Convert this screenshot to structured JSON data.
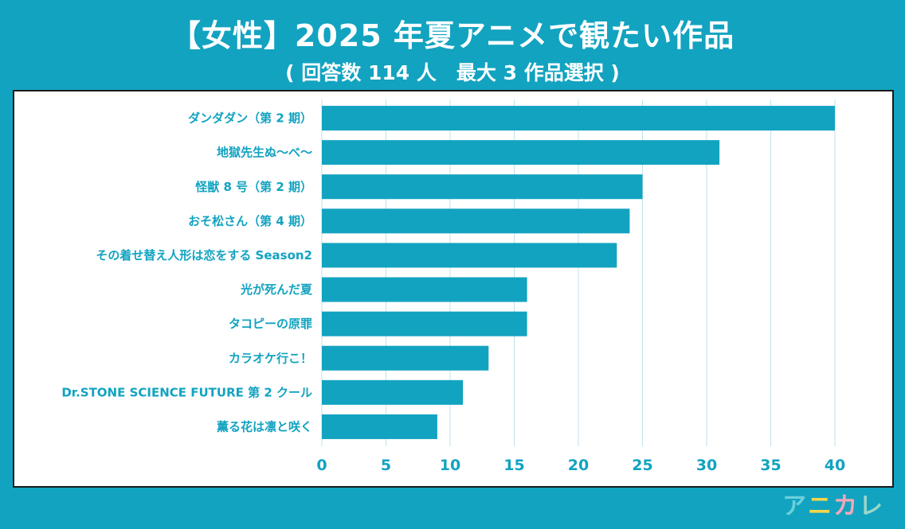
{
  "header": {
    "title": "【女性】2025 年夏アニメで観たい作品",
    "subtitle": "( 回答数 114 人　最大 3 作品選択 )"
  },
  "chart_data": {
    "type": "bar",
    "orientation": "horizontal",
    "title": "【女性】2025 年夏アニメで観たい作品",
    "subtitle": "( 回答数 114 人　最大 3 作品選択 )",
    "categories": [
      "ダンダダン（第 2 期）",
      "地獄先生ぬ〜べ〜",
      "怪獣 8 号（第 2 期）",
      "おそ松さん（第 4 期）",
      "その着せ替え人形は恋をする Season2",
      "光が死んだ夏",
      "タコピーの原罪",
      "カラオケ行こ！",
      "Dr.STONE SCIENCE FUTURE 第 2 クール",
      "薫る花は凛と咲く"
    ],
    "values": [
      40,
      31,
      25,
      24,
      23,
      16,
      16,
      13,
      11,
      9
    ],
    "xlim": [
      0,
      40
    ],
    "xticks": [
      "0",
      "5",
      "10",
      "15",
      "20",
      "25",
      "30",
      "35",
      "40"
    ],
    "grid": true,
    "colors": {
      "bar": "#12a3c0",
      "label": "#12a3c0",
      "grid": "#bfe3ea"
    }
  },
  "logo": {
    "chars": [
      "ア",
      "ニ",
      "カ",
      "レ"
    ],
    "colors": [
      "#6ad0dc",
      "#f7d64a",
      "#f5a7b8",
      "#9ad7c8"
    ]
  }
}
